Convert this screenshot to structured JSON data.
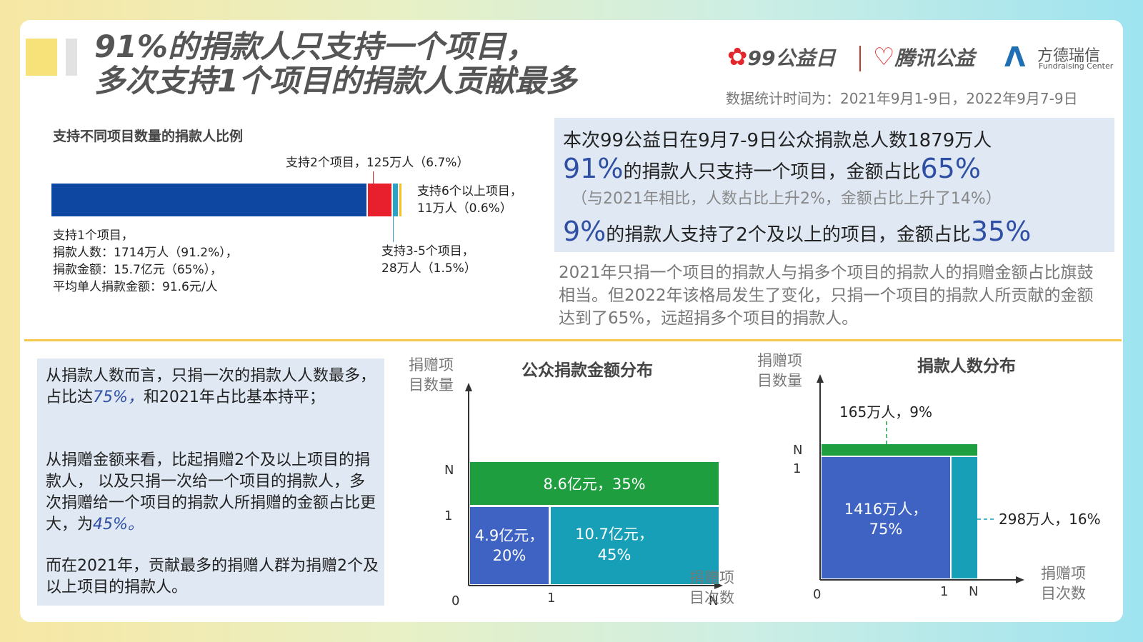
{
  "header": {
    "title_line1": "91%的捐款人只支持一个项目，",
    "title_line2": "多次支持1个项目的捐款人贡献最多",
    "logo_99": "99公益日",
    "logo_tencent": "腾讯公益",
    "logo_fd": "方德瑞信",
    "logo_fd_en": "Fundraising Center",
    "date_range": "数据统计时间为：2021年9月1-9日，2022年9月7-9日",
    "colors": {
      "flower": "#e2262b",
      "fd_mark": "#1f6fb5"
    }
  },
  "donor_bar": {
    "caption": "支持不同项目数量的捐款人比例",
    "labels": {
      "one_l1": "支持1个项目，",
      "one_l2": "捐款人数：1714万人（91.2%），",
      "one_l3": "捐款金额：15.7亿元（65%），",
      "one_l4": "平均单人捐款金额：91.6元/人",
      "two": "支持2个项目，125万人（6.7%）",
      "six_l1": "支持6个以上项目，",
      "six_l2": "11万人（0.6%）",
      "three_l1": "支持3-5个项目，",
      "three_l2": "28万人（1.5%）"
    }
  },
  "chart_data": [
    {
      "type": "bar",
      "orientation": "horizontal-stacked",
      "title": "支持不同项目数量的捐款人比例",
      "categories": [
        "支持1个项目",
        "支持2个项目",
        "支持3-5个项目",
        "支持6个以上项目"
      ],
      "values_percent": [
        91.2,
        6.7,
        1.5,
        0.6
      ],
      "values_people_wan": [
        1714,
        125,
        28,
        11
      ],
      "colors": [
        "#0d47a1",
        "#e8202e",
        "#29a3c6",
        "#f4c21e"
      ]
    },
    {
      "type": "mosaic",
      "title": "公众捐款金额分布",
      "ylabel": "捐赠项目数量",
      "xlabel": "捐赠项目次数",
      "x_ticks": [
        "0",
        "1",
        "N"
      ],
      "y_ticks": [
        "1",
        "N"
      ],
      "cells": [
        {
          "label_l1": "8.6亿元，35%",
          "label_l2": "",
          "amount_yi": 8.6,
          "share": 35,
          "projects": "N",
          "times": "N",
          "color": "#1e9e3e"
        },
        {
          "label_l1": "4.9亿元，",
          "label_l2": "20%",
          "amount_yi": 4.9,
          "share": 20,
          "projects": "1",
          "times": "1",
          "color": "#3e63c2"
        },
        {
          "label_l1": "10.7亿元，",
          "label_l2": "45%",
          "amount_yi": 10.7,
          "share": 45,
          "projects": "1",
          "times": "N",
          "color": "#169fb7"
        }
      ]
    },
    {
      "type": "mosaic",
      "title": "捐款人数分布",
      "ylabel": "捐赠项目数量",
      "xlabel": "捐赠项目次数",
      "x_ticks": [
        "0",
        "1",
        "N"
      ],
      "y_ticks": [
        "1",
        "N"
      ],
      "cells": [
        {
          "label_l1": "165万人，9%",
          "label_l2": "",
          "people_wan": 165,
          "share": 9,
          "projects": "N",
          "times": "N",
          "color": "#1e9e3e"
        },
        {
          "label_l1": "1416万人，",
          "label_l2": "75%",
          "people_wan": 1416,
          "share": 75,
          "projects": "1",
          "times": "1",
          "color": "#3e63c2"
        },
        {
          "label_l1": "298万人，16%",
          "label_l2": "",
          "people_wan": 298,
          "share": 16,
          "projects": "1",
          "times": "N",
          "color": "#169fb7"
        }
      ]
    }
  ],
  "highlights": {
    "line1": "本次99公益日在9月7-9日公众捐款总人数1879万人",
    "line2_pct": "91%",
    "line2_text": "的捐款人只支持一个项目，金额占比",
    "line2_pct2": "65%",
    "note": "（与2021年相比，人数占比上升2%，金额占比上升了14%）",
    "line3_pct": "9%",
    "line3_text": "的捐款人支持了2个及以上的项目，金额占比",
    "line3_pct2": "35%"
  },
  "comparison_text": "2021年只捐一个项目的捐款人与捐多个项目的捐款人的捐赠金额占比旗鼓相当。但2022年该格局发生了变化，只捐一个项目的捐款人所贡献的金额达到了65%，远超捐多个项目的捐款人。",
  "summary": {
    "p1_a": "从捐款人数而言，只捐一次的捐款人人数最多，占比达",
    "p1_em": "75%，",
    "p1_b": "和2021年占比基本持平；",
    "p2_a": "从捐赠金额来看，比起捐赠2个及以上项目的捐款人， 以及只捐一次给一个项目的捐款人，多次捐赠给一个项目的捐款人所捐赠的金额占比更大，为",
    "p2_em": "45%。",
    "p3": "而在2021年，贡献最多的捐赠人群为捐赠2个及以上项目的捐款人。"
  }
}
